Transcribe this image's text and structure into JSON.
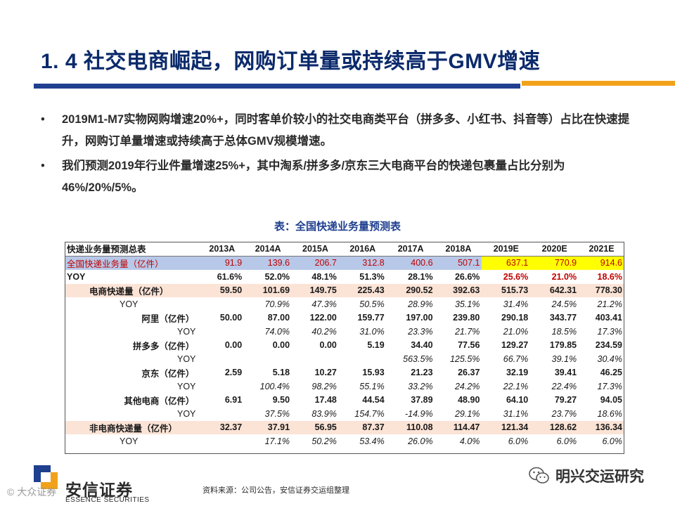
{
  "title": "1. 4 社交电商崛起，网购订单量或持续高于GMV增速",
  "bullets": [
    "2019M1-M7实物网购增速20%+，同时客单价较小的社交电商类平台（拼多多、小红书、抖音等）占比在快速提升，网购订单量增速或持续高于总体GMV规模增速。",
    "我们预测2019年行业件量增速25%+，其中淘系/拼多多/京东三大电商平台的快递包裹量占比分别为46%/20%/5%。"
  ],
  "bullet_symbol": "•",
  "table": {
    "caption": "表：全国快递业务量预测表",
    "header": [
      "快递业务量预测总表",
      "2013A",
      "2014A",
      "2015A",
      "2016A",
      "2017A",
      "2018A",
      "2019E",
      "2020E",
      "2021E"
    ],
    "rows": [
      {
        "label": "全国快递业务量（亿件）",
        "values": [
          "91.9",
          "139.6",
          "206.7",
          "312.8",
          "400.6",
          "507.1",
          "637.1",
          "770.9",
          "914.6"
        ]
      },
      {
        "label": "YOY",
        "values": [
          "61.6%",
          "52.0%",
          "48.1%",
          "51.3%",
          "28.1%",
          "26.6%",
          "25.6%",
          "21.0%",
          "18.6%"
        ]
      },
      {
        "label": "电商快递量（亿件）",
        "values": [
          "59.50",
          "101.69",
          "149.75",
          "225.43",
          "290.52",
          "392.63",
          "515.73",
          "642.31",
          "778.30"
        ]
      },
      {
        "label": "YOY",
        "values": [
          "",
          "70.9%",
          "47.3%",
          "50.5%",
          "28.9%",
          "35.1%",
          "31.4%",
          "24.5%",
          "21.2%"
        ]
      },
      {
        "label": "阿里（亿件）",
        "values": [
          "50.00",
          "87.00",
          "122.00",
          "159.77",
          "197.00",
          "239.80",
          "290.18",
          "343.77",
          "403.41"
        ]
      },
      {
        "label": "YOY",
        "values": [
          "",
          "74.0%",
          "40.2%",
          "31.0%",
          "23.3%",
          "21.7%",
          "21.0%",
          "18.5%",
          "17.3%"
        ]
      },
      {
        "label": "拼多多（亿件）",
        "values": [
          "0.00",
          "0.00",
          "0.00",
          "5.19",
          "34.40",
          "77.56",
          "129.27",
          "179.85",
          "234.59"
        ]
      },
      {
        "label": "YOY",
        "values": [
          "",
          "",
          "",
          "",
          "563.5%",
          "125.5%",
          "66.7%",
          "39.1%",
          "30.4%"
        ]
      },
      {
        "label": "京东（亿件）",
        "values": [
          "2.59",
          "5.18",
          "10.27",
          "15.93",
          "21.23",
          "26.37",
          "32.19",
          "39.41",
          "46.25"
        ]
      },
      {
        "label": "YOY",
        "values": [
          "",
          "100.4%",
          "98.2%",
          "55.1%",
          "33.2%",
          "24.2%",
          "22.1%",
          "22.4%",
          "17.3%"
        ]
      },
      {
        "label": "其他电商（亿件）",
        "values": [
          "6.91",
          "9.50",
          "17.48",
          "44.54",
          "37.89",
          "48.90",
          "64.10",
          "79.27",
          "94.05"
        ]
      },
      {
        "label": "YOY",
        "values": [
          "",
          "37.5%",
          "83.9%",
          "154.7%",
          "-14.9%",
          "29.1%",
          "31.1%",
          "23.7%",
          "18.6%"
        ]
      },
      {
        "label": "非电商快递量（亿件）",
        "values": [
          "32.37",
          "37.91",
          "56.95",
          "87.37",
          "110.08",
          "114.47",
          "121.34",
          "128.62",
          "136.34"
        ]
      },
      {
        "label": "YOY",
        "values": [
          "",
          "17.1%",
          "50.2%",
          "53.4%",
          "26.0%",
          "4.0%",
          "6.0%",
          "6.0%",
          "6.0%"
        ]
      }
    ]
  },
  "footer": {
    "logo_text": "安信证券",
    "logo_sub": "ESSENCE SECURITIES",
    "source": "资料来源：公司公告，安信证券交运组整理",
    "wechat_name": "明兴交运研究",
    "watermark": "© 大众证券"
  },
  "colors": {
    "title": "#0b2a6b",
    "bar_blue": "#1f3f8f",
    "bar_orange": "#f2a21a",
    "total_row_bg": "#b8c8e8",
    "highlight": "#ffff00",
    "red_text": "#c00000",
    "pink_row_bg": "#fbe3d6"
  }
}
